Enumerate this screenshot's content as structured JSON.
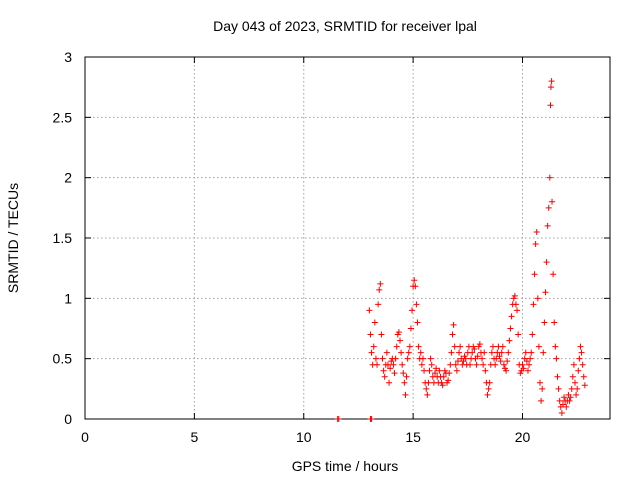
{
  "chart_data": {
    "type": "scatter",
    "title": "Day 043 of 2023, SRMTID for receiver lpal",
    "xlabel": "GPS time / hours",
    "ylabel": "SRMTID / TECUs",
    "xlim": [
      0,
      24
    ],
    "ylim": [
      0,
      3
    ],
    "xticks": [
      0,
      5,
      10,
      15,
      20
    ],
    "xtick_labels": [
      "0",
      "5",
      "10",
      "15",
      "20"
    ],
    "yticks": [
      0,
      0.5,
      1,
      1.5,
      2,
      2.5,
      3
    ],
    "ytick_labels": [
      "0",
      "0.5",
      "1",
      "1.5",
      "2",
      "2.5",
      "3"
    ],
    "grid": true,
    "marker": "+",
    "color": "#ff0000",
    "series": [
      {
        "name": "SRMTID",
        "points": [
          [
            11.55,
            0.0
          ],
          [
            11.6,
            0.0
          ],
          [
            13.05,
            0.0
          ],
          [
            13.1,
            0.0
          ],
          [
            13.0,
            0.9
          ],
          [
            13.05,
            0.7
          ],
          [
            13.1,
            0.55
          ],
          [
            13.15,
            0.45
          ],
          [
            13.2,
            0.6
          ],
          [
            13.25,
            0.8
          ],
          [
            13.3,
            0.5
          ],
          [
            13.35,
            0.45
          ],
          [
            13.4,
            0.95
          ],
          [
            13.45,
            1.07
          ],
          [
            13.5,
            1.12
          ],
          [
            13.55,
            0.7
          ],
          [
            13.6,
            0.5
          ],
          [
            13.65,
            0.4
          ],
          [
            13.7,
            0.35
          ],
          [
            13.75,
            0.45
          ],
          [
            13.8,
            0.55
          ],
          [
            13.85,
            0.45
          ],
          [
            13.9,
            0.3
          ],
          [
            13.95,
            0.42
          ],
          [
            14.0,
            0.48
          ],
          [
            14.05,
            0.5
          ],
          [
            14.1,
            0.45
          ],
          [
            14.15,
            0.38
          ],
          [
            14.2,
            0.5
          ],
          [
            14.25,
            0.6
          ],
          [
            14.3,
            0.7
          ],
          [
            14.35,
            0.72
          ],
          [
            14.4,
            0.65
          ],
          [
            14.45,
            0.55
          ],
          [
            14.5,
            0.45
          ],
          [
            14.55,
            0.38
          ],
          [
            14.6,
            0.3
          ],
          [
            14.65,
            0.2
          ],
          [
            14.7,
            0.35
          ],
          [
            14.75,
            0.5
          ],
          [
            14.8,
            0.55
          ],
          [
            14.85,
            0.6
          ],
          [
            14.9,
            0.75
          ],
          [
            14.95,
            0.9
          ],
          [
            15.0,
            1.1
          ],
          [
            15.05,
            1.15
          ],
          [
            15.1,
            1.1
          ],
          [
            15.15,
            0.95
          ],
          [
            15.2,
            0.8
          ],
          [
            15.25,
            0.6
          ],
          [
            15.3,
            0.5
          ],
          [
            15.35,
            0.55
          ],
          [
            15.4,
            0.45
          ],
          [
            15.45,
            0.5
          ],
          [
            15.5,
            0.4
          ],
          [
            15.55,
            0.3
          ],
          [
            15.6,
            0.25
          ],
          [
            15.65,
            0.2
          ],
          [
            15.7,
            0.3
          ],
          [
            15.75,
            0.4
          ],
          [
            15.8,
            0.5
          ],
          [
            15.85,
            0.45
          ],
          [
            15.9,
            0.35
          ],
          [
            15.95,
            0.3
          ],
          [
            16.0,
            0.38
          ],
          [
            16.05,
            0.42
          ],
          [
            16.1,
            0.35
          ],
          [
            16.15,
            0.3
          ],
          [
            16.2,
            0.4
          ],
          [
            16.25,
            0.35
          ],
          [
            16.3,
            0.3
          ],
          [
            16.35,
            0.28
          ],
          [
            16.4,
            0.35
          ],
          [
            16.45,
            0.4
          ],
          [
            16.5,
            0.38
          ],
          [
            16.55,
            0.3
          ],
          [
            16.6,
            0.32
          ],
          [
            16.65,
            0.38
          ],
          [
            16.7,
            0.45
          ],
          [
            16.75,
            0.55
          ],
          [
            16.8,
            0.7
          ],
          [
            16.85,
            0.78
          ],
          [
            16.9,
            0.6
          ],
          [
            16.95,
            0.45
          ],
          [
            17.0,
            0.4
          ],
          [
            17.05,
            0.48
          ],
          [
            17.1,
            0.55
          ],
          [
            17.15,
            0.6
          ],
          [
            17.2,
            0.5
          ],
          [
            17.25,
            0.45
          ],
          [
            17.3,
            0.48
          ],
          [
            17.35,
            0.52
          ],
          [
            17.4,
            0.5
          ],
          [
            17.45,
            0.45
          ],
          [
            17.5,
            0.55
          ],
          [
            17.55,
            0.6
          ],
          [
            17.6,
            0.45
          ],
          [
            17.65,
            0.5
          ],
          [
            17.7,
            0.55
          ],
          [
            17.75,
            0.6
          ],
          [
            17.8,
            0.58
          ],
          [
            17.85,
            0.5
          ],
          [
            17.9,
            0.45
          ],
          [
            17.95,
            0.52
          ],
          [
            18.0,
            0.6
          ],
          [
            18.05,
            0.62
          ],
          [
            18.1,
            0.55
          ],
          [
            18.15,
            0.5
          ],
          [
            18.2,
            0.45
          ],
          [
            18.25,
            0.55
          ],
          [
            18.3,
            0.4
          ],
          [
            18.35,
            0.3
          ],
          [
            18.4,
            0.2
          ],
          [
            18.45,
            0.25
          ],
          [
            18.5,
            0.3
          ],
          [
            18.55,
            0.45
          ],
          [
            18.6,
            0.55
          ],
          [
            18.65,
            0.6
          ],
          [
            18.7,
            0.5
          ],
          [
            18.75,
            0.45
          ],
          [
            18.8,
            0.5
          ],
          [
            18.85,
            0.55
          ],
          [
            18.9,
            0.6
          ],
          [
            18.95,
            0.52
          ],
          [
            19.0,
            0.48
          ],
          [
            19.05,
            0.55
          ],
          [
            19.1,
            0.6
          ],
          [
            19.15,
            0.45
          ],
          [
            19.2,
            0.42
          ],
          [
            19.25,
            0.4
          ],
          [
            19.3,
            0.48
          ],
          [
            19.35,
            0.55
          ],
          [
            19.4,
            0.65
          ],
          [
            19.45,
            0.75
          ],
          [
            19.5,
            0.85
          ],
          [
            19.55,
            0.95
          ],
          [
            19.6,
            1.0
          ],
          [
            19.65,
            1.02
          ],
          [
            19.7,
            0.95
          ],
          [
            19.75,
            0.9
          ],
          [
            19.8,
            0.7
          ],
          [
            19.85,
            0.45
          ],
          [
            19.9,
            0.38
          ],
          [
            19.95,
            0.4
          ],
          [
            20.0,
            0.45
          ],
          [
            20.05,
            0.42
          ],
          [
            20.1,
            0.5
          ],
          [
            20.15,
            0.55
          ],
          [
            20.2,
            0.48
          ],
          [
            20.25,
            0.4
          ],
          [
            20.3,
            0.45
          ],
          [
            20.35,
            0.5
          ],
          [
            20.4,
            0.55
          ],
          [
            20.45,
            0.7
          ],
          [
            20.5,
            0.95
          ],
          [
            20.55,
            1.2
          ],
          [
            20.6,
            1.45
          ],
          [
            20.65,
            1.55
          ],
          [
            20.7,
            1.0
          ],
          [
            20.75,
            0.6
          ],
          [
            20.8,
            0.3
          ],
          [
            20.85,
            0.15
          ],
          [
            20.9,
            0.25
          ],
          [
            20.95,
            0.55
          ],
          [
            21.0,
            0.8
          ],
          [
            21.05,
            1.05
          ],
          [
            21.1,
            1.3
          ],
          [
            21.15,
            1.6
          ],
          [
            21.2,
            1.75
          ],
          [
            21.25,
            2.0
          ],
          [
            21.28,
            2.6
          ],
          [
            21.3,
            2.75
          ],
          [
            21.33,
            2.8
          ],
          [
            21.35,
            1.8
          ],
          [
            21.4,
            1.2
          ],
          [
            21.45,
            0.8
          ],
          [
            21.5,
            0.6
          ],
          [
            21.55,
            0.5
          ],
          [
            21.6,
            0.35
          ],
          [
            21.65,
            0.25
          ],
          [
            21.7,
            0.15
          ],
          [
            21.75,
            0.1
          ],
          [
            21.8,
            0.05
          ],
          [
            21.85,
            0.12
          ],
          [
            21.9,
            0.18
          ],
          [
            21.95,
            0.15
          ],
          [
            22.0,
            0.1
          ],
          [
            22.05,
            0.15
          ],
          [
            22.1,
            0.2
          ],
          [
            22.15,
            0.15
          ],
          [
            22.2,
            0.18
          ],
          [
            22.25,
            0.25
          ],
          [
            22.3,
            0.35
          ],
          [
            22.35,
            0.45
          ],
          [
            22.4,
            0.3
          ],
          [
            22.45,
            0.2
          ],
          [
            22.5,
            0.25
          ],
          [
            22.55,
            0.4
          ],
          [
            22.6,
            0.5
          ],
          [
            22.65,
            0.6
          ],
          [
            22.7,
            0.55
          ],
          [
            22.75,
            0.45
          ],
          [
            22.8,
            0.35
          ],
          [
            22.85,
            0.28
          ]
        ]
      }
    ]
  }
}
